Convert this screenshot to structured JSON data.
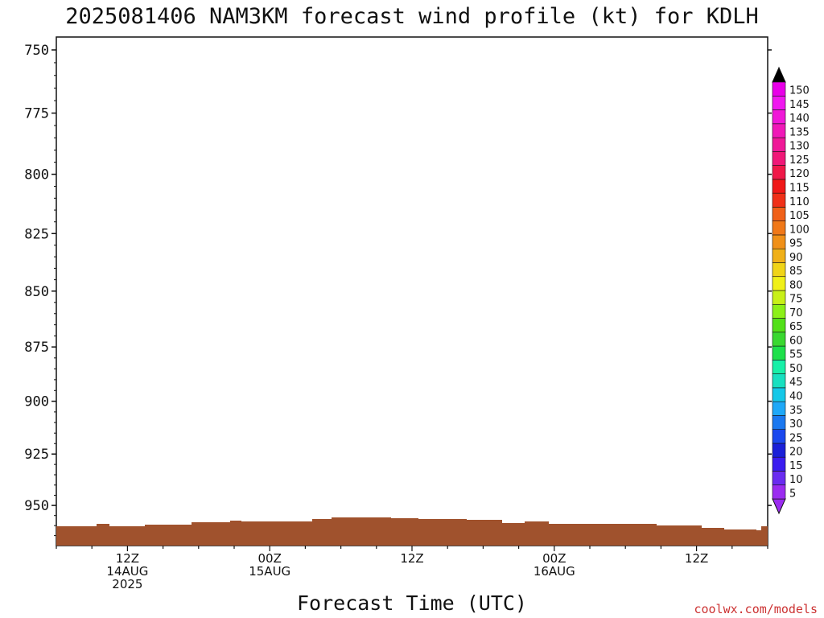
{
  "chart_data": {
    "type": "wind-barb",
    "title": "2025081406 NAM3KM forecast wind profile (kt) for KDLH",
    "xlabel": "Forecast Time (UTC)",
    "ylabel": "",
    "y_axis": {
      "ticks": [
        "750",
        "775",
        "800",
        "825",
        "850",
        "875",
        "900",
        "925",
        "950"
      ],
      "values": [
        750,
        775,
        800,
        825,
        850,
        875,
        900,
        925,
        950
      ],
      "range": [
        745,
        970
      ],
      "scale": "log",
      "inverted": true
    },
    "x_axis": {
      "ticks": [
        {
          "lines": [
            "12Z",
            "14AUG",
            "2025"
          ],
          "hours": 6
        },
        {
          "lines": [
            "00Z",
            "15AUG"
          ],
          "hours": 18
        },
        {
          "lines": [
            "12Z"
          ],
          "hours": 30
        },
        {
          "lines": [
            "00Z",
            "16AUG"
          ],
          "hours": 42
        },
        {
          "lines": [
            "12Z"
          ],
          "hours": 54
        }
      ],
      "range_hours": [
        0,
        60
      ]
    },
    "colorbar": {
      "levels": [
        "5",
        "10",
        "15",
        "20",
        "25",
        "30",
        "35",
        "40",
        "45",
        "50",
        "55",
        "60",
        "65",
        "70",
        "75",
        "80",
        "85",
        "90",
        "95",
        "100",
        "105",
        "110",
        "115",
        "120",
        "125",
        "130",
        "135",
        "140",
        "145",
        "150"
      ],
      "colors": [
        "#9b2cf0",
        "#6a2cf0",
        "#3a1cf0",
        "#1a20d8",
        "#1a48ee",
        "#1a78f0",
        "#1ea8f8",
        "#14c8e8",
        "#18e0c0",
        "#18f0a8",
        "#1ee04a",
        "#3ad830",
        "#52e018",
        "#8cf018",
        "#c8f018",
        "#f0f018",
        "#f0d418",
        "#f0b018",
        "#f09018",
        "#f07818",
        "#f06018",
        "#f03018",
        "#f01818",
        "#f01848",
        "#f01878",
        "#f01898",
        "#f018b8",
        "#f018d8",
        "#f018f0",
        "#e800e8"
      ],
      "triangle_low": "#9b2cf0",
      "triangle_high": "#000000"
    },
    "surface_color": "#a0522d",
    "barbs": []
  },
  "credit": "coolwx.com/models"
}
